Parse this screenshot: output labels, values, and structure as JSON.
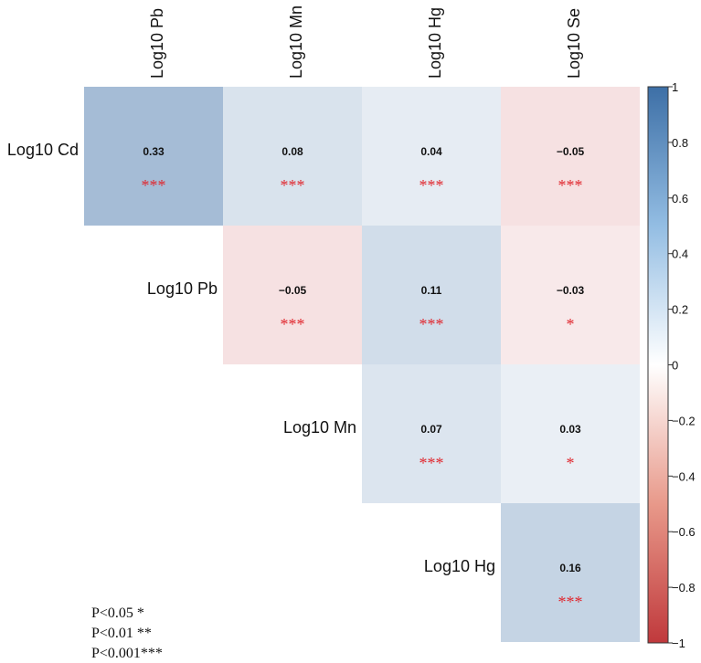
{
  "chart_data": {
    "type": "heatmap",
    "row_labels": [
      "Log10 Cd",
      "Log10 Pb",
      "Log10 Mn",
      "Log10 Hg"
    ],
    "col_labels": [
      "Log10 Pb",
      "Log10 Mn",
      "Log10 Hg",
      "Log10 Se"
    ],
    "cells": [
      {
        "row": "Log10 Cd",
        "col": "Log10 Pb",
        "value": 0.33,
        "label": "0.33",
        "sig": "***"
      },
      {
        "row": "Log10 Cd",
        "col": "Log10 Mn",
        "value": 0.08,
        "label": "0.08",
        "sig": "***"
      },
      {
        "row": "Log10 Cd",
        "col": "Log10 Hg",
        "value": 0.04,
        "label": "0.04",
        "sig": "***"
      },
      {
        "row": "Log10 Cd",
        "col": "Log10 Se",
        "value": -0.05,
        "label": "−0.05",
        "sig": "***"
      },
      {
        "row": "Log10 Pb",
        "col": "Log10 Mn",
        "value": -0.05,
        "label": "−0.05",
        "sig": "***"
      },
      {
        "row": "Log10 Pb",
        "col": "Log10 Hg",
        "value": 0.11,
        "label": "0.11",
        "sig": "***"
      },
      {
        "row": "Log10 Pb",
        "col": "Log10 Se",
        "value": -0.03,
        "label": "−0.03",
        "sig": "*"
      },
      {
        "row": "Log10 Mn",
        "col": "Log10 Hg",
        "value": 0.07,
        "label": "0.07",
        "sig": "***"
      },
      {
        "row": "Log10 Mn",
        "col": "Log10 Se",
        "value": 0.03,
        "label": "0.03",
        "sig": "*"
      },
      {
        "row": "Log10 Hg",
        "col": "Log10 Se",
        "value": 0.16,
        "label": "0.16",
        "sig": "***"
      }
    ],
    "colorbar": {
      "range": [
        -1,
        1
      ],
      "ticks": [
        "1",
        "0.8",
        "0.6",
        "0.4",
        "0.2",
        "0",
        "−0.2",
        "−0.4",
        "−0.6",
        "−0.8",
        "−1"
      ],
      "colors": {
        "negative": "#c0393c",
        "zero": "#ffffff",
        "positive": "#3d6fa6"
      }
    },
    "significance_legend": [
      "P<0.05 *",
      "P<0.01 **",
      "P<0.001***"
    ],
    "sig_color": "#e0262d"
  }
}
